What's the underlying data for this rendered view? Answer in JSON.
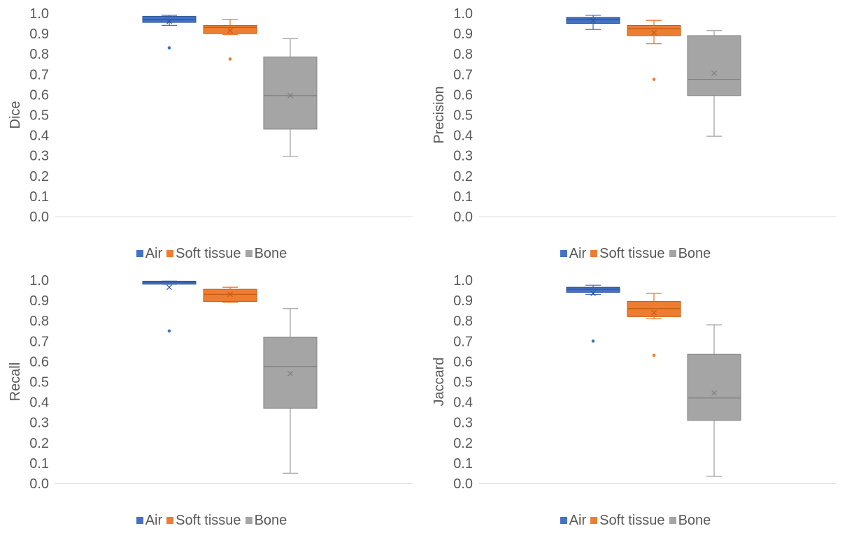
{
  "legend": [
    {
      "name": "Air",
      "color": "#4472c4"
    },
    {
      "name": "Soft tissue",
      "color": "#ed7d31"
    },
    {
      "name": "Bone",
      "color": "#a5a5a5"
    }
  ],
  "chart_data": [
    {
      "type": "box",
      "ylabel": "Dice",
      "ylim": [
        0,
        1
      ],
      "yticks": [
        "0.0",
        "0.1",
        "0.2",
        "0.3",
        "0.4",
        "0.5",
        "0.6",
        "0.7",
        "0.8",
        "0.9",
        "1.0"
      ],
      "grid": false,
      "legend_position": "bottom",
      "series": [
        {
          "name": "Air",
          "min": 0.94,
          "q1": 0.955,
          "median": 0.97,
          "q3": 0.985,
          "max": 0.99,
          "mean": 0.96,
          "outliers": [
            0.83
          ]
        },
        {
          "name": "Soft tissue",
          "min": 0.895,
          "q1": 0.9,
          "median": 0.93,
          "q3": 0.94,
          "max": 0.97,
          "mean": 0.915,
          "outliers": [
            0.775
          ]
        },
        {
          "name": "Bone",
          "min": 0.295,
          "q1": 0.43,
          "median": 0.595,
          "q3": 0.785,
          "max": 0.875,
          "mean": 0.595,
          "outliers": []
        }
      ]
    },
    {
      "type": "box",
      "ylabel": "Precision",
      "ylim": [
        0,
        1
      ],
      "yticks": [
        "0.0",
        "0.1",
        "0.2",
        "0.3",
        "0.4",
        "0.5",
        "0.6",
        "0.7",
        "0.8",
        "0.9",
        "1.0"
      ],
      "grid": false,
      "legend_position": "bottom",
      "series": [
        {
          "name": "Air",
          "min": 0.92,
          "q1": 0.95,
          "median": 0.97,
          "q3": 0.98,
          "max": 0.99,
          "mean": 0.965,
          "outliers": []
        },
        {
          "name": "Soft tissue",
          "min": 0.85,
          "q1": 0.89,
          "median": 0.925,
          "q3": 0.94,
          "max": 0.965,
          "mean": 0.905,
          "outliers": [
            0.675
          ]
        },
        {
          "name": "Bone",
          "min": 0.395,
          "q1": 0.595,
          "median": 0.675,
          "q3": 0.89,
          "max": 0.915,
          "mean": 0.705,
          "outliers": []
        }
      ]
    },
    {
      "type": "box",
      "ylabel": "Recall",
      "ylim": [
        0,
        1
      ],
      "yticks": [
        "0.0",
        "0.1",
        "0.2",
        "0.3",
        "0.4",
        "0.5",
        "0.6",
        "0.7",
        "0.8",
        "0.9",
        "1.0"
      ],
      "grid": false,
      "legend_position": "bottom",
      "series": [
        {
          "name": "Air",
          "min": 0.98,
          "q1": 0.98,
          "median": 0.99,
          "q3": 0.995,
          "max": 0.995,
          "mean": 0.965,
          "outliers": [
            0.75
          ]
        },
        {
          "name": "Soft tissue",
          "min": 0.89,
          "q1": 0.895,
          "median": 0.93,
          "q3": 0.955,
          "max": 0.965,
          "mean": 0.93,
          "outliers": []
        },
        {
          "name": "Bone",
          "min": 0.05,
          "q1": 0.37,
          "median": 0.575,
          "q3": 0.72,
          "max": 0.86,
          "mean": 0.54,
          "outliers": []
        }
      ]
    },
    {
      "type": "box",
      "ylabel": "Jaccard",
      "ylim": [
        0,
        1
      ],
      "yticks": [
        "0.0",
        "0.1",
        "0.2",
        "0.3",
        "0.4",
        "0.5",
        "0.6",
        "0.7",
        "0.8",
        "0.9",
        "1.0"
      ],
      "grid": false,
      "legend_position": "bottom",
      "series": [
        {
          "name": "Air",
          "min": 0.93,
          "q1": 0.94,
          "median": 0.955,
          "q3": 0.965,
          "max": 0.975,
          "mean": 0.935,
          "outliers": [
            0.7
          ]
        },
        {
          "name": "Soft tissue",
          "min": 0.81,
          "q1": 0.82,
          "median": 0.86,
          "q3": 0.895,
          "max": 0.935,
          "mean": 0.84,
          "outliers": [
            0.63
          ]
        },
        {
          "name": "Bone",
          "min": 0.035,
          "q1": 0.31,
          "median": 0.42,
          "q3": 0.635,
          "max": 0.78,
          "mean": 0.445,
          "outliers": []
        }
      ]
    }
  ]
}
